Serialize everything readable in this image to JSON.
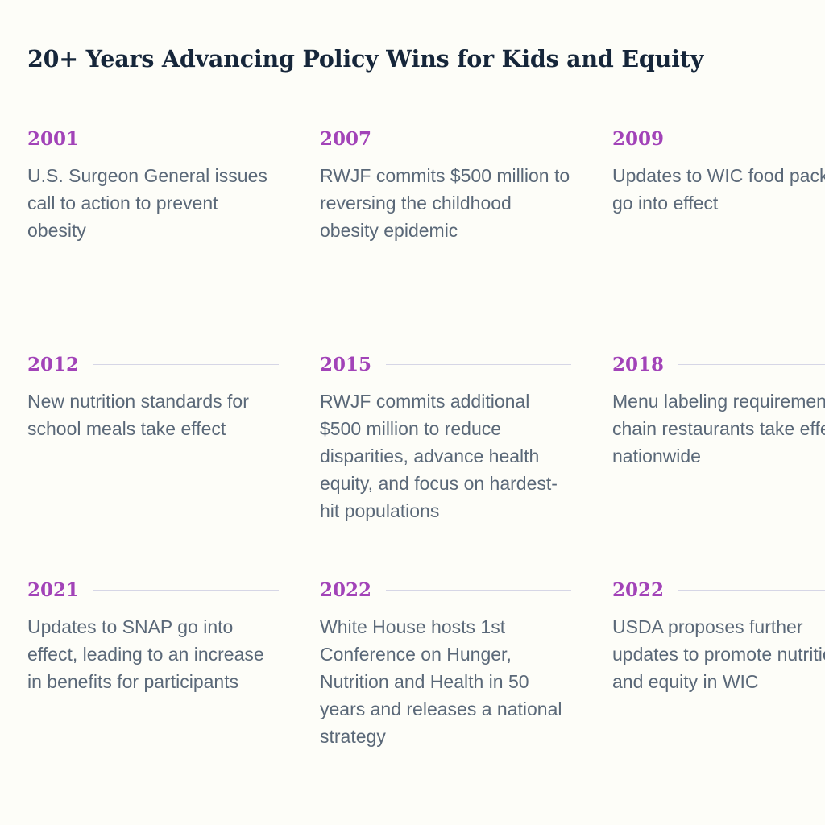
{
  "title": "20+ Years Advancing Policy Wins for Kids and Equity",
  "milestones": [
    {
      "year": "2001",
      "text": "U.S. Surgeon General issues call to action to prevent obesity"
    },
    {
      "year": "2007",
      "text": "RWJF commits $500 million to reversing the childhood obesity epidemic"
    },
    {
      "year": "2009",
      "text": "Updates to WIC food package go into effect"
    },
    {
      "year": "2012",
      "text": "New nutrition standards for school meals take effect"
    },
    {
      "year": "2015",
      "text": "RWJF commits additional $500 million to reduce disparities, advance health equity, and focus on hardest-hit populations"
    },
    {
      "year": "2018",
      "text": "Menu labeling requirements in chain restaurants take effect nationwide"
    },
    {
      "year": "2021",
      "text": "Updates to SNAP go into effect, leading to an increase in benefits for participants"
    },
    {
      "year": "2022",
      "text": "White House hosts 1st Conference on Hunger, Nutrition and Health in 50 years and releases a national strategy"
    },
    {
      "year": "2022",
      "text": "USDA proposes further updates to promote nutrition and equity in WIC"
    }
  ],
  "colors": {
    "background": "#fdfdf8",
    "title": "#16263a",
    "year_accent": "#a243b8",
    "body_text": "#5a6878",
    "rule": "#d6d6e6"
  }
}
